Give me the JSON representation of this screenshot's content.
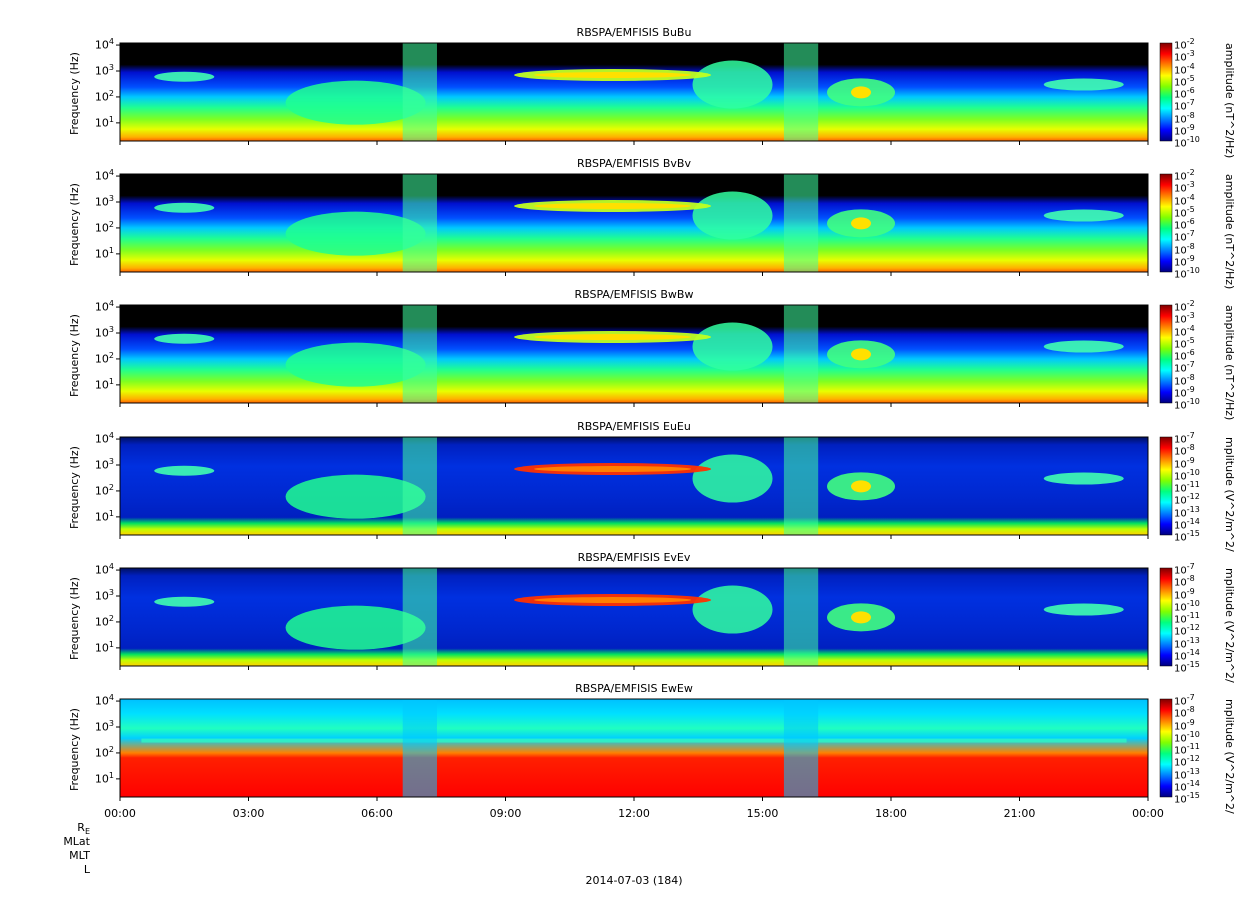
{
  "chart_data": {
    "type": "heatmap",
    "panels": [
      {
        "title": "RBSPA/EMFISIS  BuBu",
        "ylabel": "Frequency (Hz)",
        "cblabel": "amplitude (nT^2/Hz)",
        "cb_ticks": [
          "-2",
          "-3",
          "-4",
          "-5",
          "-6",
          "-7",
          "-8",
          "-9",
          "-10"
        ],
        "kind": "B"
      },
      {
        "title": "RBSPA/EMFISIS  BvBv",
        "ylabel": "Frequency (Hz)",
        "cblabel": "amplitude (nT^2/Hz)",
        "cb_ticks": [
          "-2",
          "-3",
          "-4",
          "-5",
          "-6",
          "-7",
          "-8",
          "-9",
          "-10"
        ],
        "kind": "B"
      },
      {
        "title": "RBSPA/EMFISIS  BwBw",
        "ylabel": "Frequency (Hz)",
        "cblabel": "amplitude (nT^2/Hz)",
        "cb_ticks": [
          "-2",
          "-3",
          "-4",
          "-5",
          "-6",
          "-7",
          "-8",
          "-9",
          "-10"
        ],
        "kind": "B"
      },
      {
        "title": "RBSPA/EMFISIS  EuEu",
        "ylabel": "Frequency (Hz)",
        "cblabel": "mplitude (V^2/m^2/",
        "cb_ticks": [
          "-7",
          "-8",
          "-9",
          "-10",
          "-11",
          "-12",
          "-13",
          "-14",
          "-15"
        ],
        "kind": "E"
      },
      {
        "title": "RBSPA/EMFISIS  EvEv",
        "ylabel": "Frequency (Hz)",
        "cblabel": "mplitude (V^2/m^2/",
        "cb_ticks": [
          "-7",
          "-8",
          "-9",
          "-10",
          "-11",
          "-12",
          "-13",
          "-14",
          "-15"
        ],
        "kind": "E"
      },
      {
        "title": "RBSPA/EMFISIS  EwEw",
        "ylabel": "Frequency (Hz)",
        "cblabel": "mplitude (V^2/m^2/",
        "cb_ticks": [
          "-7",
          "-8",
          "-9",
          "-10",
          "-11",
          "-12",
          "-13",
          "-14",
          "-15"
        ],
        "kind": "Ew"
      }
    ],
    "y_ticks": [
      {
        "base": "10",
        "exp": "4"
      },
      {
        "base": "10",
        "exp": "3"
      },
      {
        "base": "10",
        "exp": "2"
      },
      {
        "base": "10",
        "exp": "1"
      }
    ],
    "ylim_hz": [
      2,
      12000
    ],
    "yscale": "log",
    "x_ticks": [
      "00:00",
      "03:00",
      "06:00",
      "09:00",
      "12:00",
      "15:00",
      "18:00",
      "21:00",
      "00:00"
    ],
    "x_range_hours": [
      0,
      24
    ],
    "colormap": [
      "#7f0000",
      "#ff0000",
      "#ff8000",
      "#ffff00",
      "#80ff00",
      "#00ff80",
      "#00ffff",
      "#0080ff",
      "#0000ff",
      "#00007f"
    ],
    "features": [
      {
        "name": "chorus band",
        "t_start": 9.2,
        "t_end": 13.8,
        "f_hz": 700
      },
      {
        "name": "hiss",
        "t_start": 0.5,
        "t_end": 23.5,
        "f_hz": 300
      },
      {
        "name": "perigee burst",
        "t_start": 6.6,
        "t_end": 7.4
      },
      {
        "name": "perigee burst",
        "t_start": 15.5,
        "t_end": 16.3
      }
    ],
    "orbit_labels": [
      "R_E",
      "MLat",
      "MLT",
      "L"
    ],
    "date": "2014-07-03 (184)"
  }
}
